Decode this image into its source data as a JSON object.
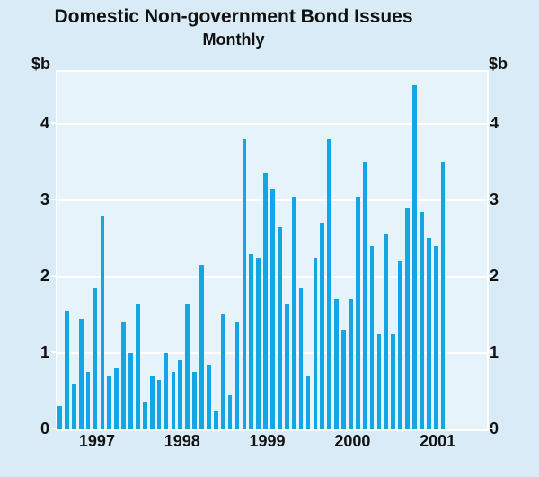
{
  "title": "Domestic Non-government Bond Issues",
  "subtitle": "Monthly",
  "axis": {
    "left_unit": "$b",
    "right_unit": "$b"
  },
  "chart_data": {
    "type": "bar",
    "title": "Domestic Non-government Bond Issues",
    "subtitle": "Monthly",
    "ylabel": "$b",
    "ylim": [
      0,
      4.67
    ],
    "yticks": [
      0,
      1,
      2,
      3,
      4
    ],
    "grid": true,
    "legend": "none",
    "bar_color": "#14a5e4",
    "x_frequency": "monthly",
    "x_range": [
      "1997-01",
      "2001-07"
    ],
    "months": [
      "1997-01",
      "1997-02",
      "1997-03",
      "1997-04",
      "1997-05",
      "1997-06",
      "1997-07",
      "1997-08",
      "1997-09",
      "1997-10",
      "1997-11",
      "1997-12",
      "1998-01",
      "1998-02",
      "1998-03",
      "1998-04",
      "1998-05",
      "1998-06",
      "1998-07",
      "1998-08",
      "1998-09",
      "1998-10",
      "1998-11",
      "1998-12",
      "1999-01",
      "1999-02",
      "1999-03",
      "1999-04",
      "1999-05",
      "1999-06",
      "1999-07",
      "1999-08",
      "1999-09",
      "1999-10",
      "1999-11",
      "1999-12",
      "2000-01",
      "2000-02",
      "2000-03",
      "2000-04",
      "2000-05",
      "2000-06",
      "2000-07",
      "2000-08",
      "2000-09",
      "2000-10",
      "2000-11",
      "2000-12",
      "2001-01",
      "2001-02",
      "2001-03",
      "2001-04",
      "2001-05",
      "2001-06",
      "2001-07"
    ],
    "values": [
      0.3,
      1.55,
      0.6,
      1.45,
      0.75,
      1.85,
      2.8,
      0.7,
      0.8,
      1.4,
      1.0,
      1.65,
      0.35,
      0.7,
      0.65,
      1.0,
      0.75,
      0.9,
      1.65,
      0.75,
      2.15,
      0.85,
      0.25,
      1.5,
      0.45,
      1.4,
      3.8,
      2.3,
      2.25,
      3.35,
      3.15,
      2.65,
      1.65,
      3.05,
      1.85,
      0.7,
      2.25,
      2.7,
      3.8,
      1.7,
      1.3,
      1.7,
      3.05,
      3.5,
      2.4,
      1.25,
      2.55,
      1.25,
      2.2,
      2.9,
      4.5,
      2.85,
      2.5,
      2.4,
      3.5
    ],
    "year_labels": [
      "1997",
      "1998",
      "1999",
      "2000",
      "2001"
    ]
  },
  "colors": {
    "background": "#d9ebf7",
    "plot_background": "#e7f3fb",
    "bar": "#14a5e4",
    "gridline": "#ffffff",
    "text": "#111111"
  }
}
